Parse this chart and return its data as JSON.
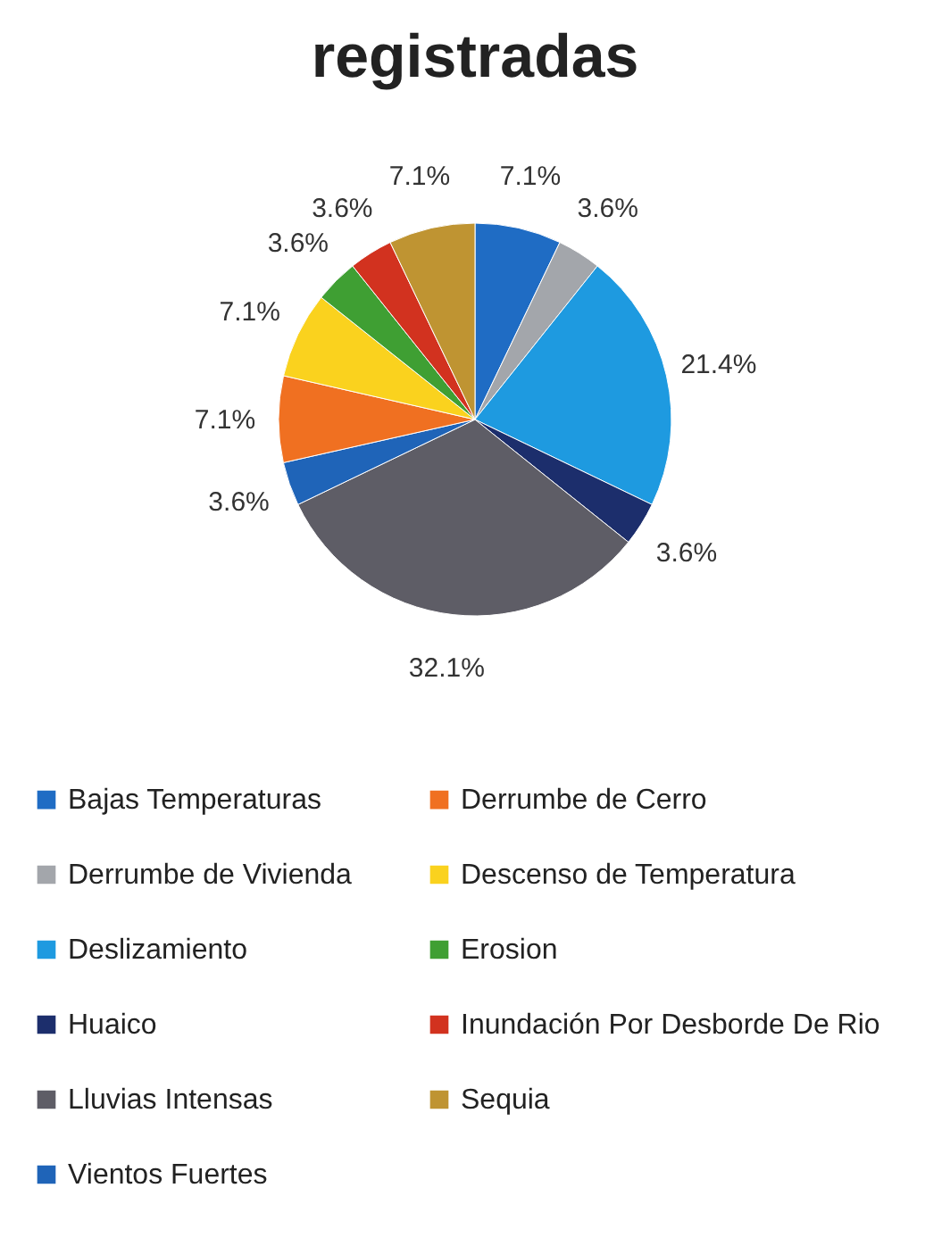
{
  "chart_data": {
    "type": "pie",
    "title": "registradas",
    "categories": [
      "Bajas Temperaturas",
      "Derrumbe de Vivienda",
      "Deslizamiento",
      "Huaico",
      "Lluvias Intensas",
      "Vientos Fuertes",
      "Derrumbe de Cerro",
      "Descenso de Temperatura",
      "Erosion",
      "Inundación Por Desborde De Rio",
      "Sequia"
    ],
    "values": [
      7.1,
      3.6,
      21.4,
      3.6,
      32.1,
      3.6,
      7.1,
      7.1,
      3.6,
      3.6,
      7.1
    ],
    "value_labels": [
      "7.1%",
      "3.6%",
      "21.4%",
      "3.6%",
      "32.1%",
      "3.6%",
      "7.1%",
      "7.1%",
      "3.6%",
      "3.6%",
      "7.1%"
    ],
    "colors": [
      "#1f6cc4",
      "#a3a6ab",
      "#1e9ae0",
      "#1c2e6c",
      "#5e5d66",
      "#1f64b8",
      "#f07021",
      "#fad21e",
      "#3f9f33",
      "#d2321f",
      "#bf9432"
    ],
    "legend": "bottom"
  }
}
